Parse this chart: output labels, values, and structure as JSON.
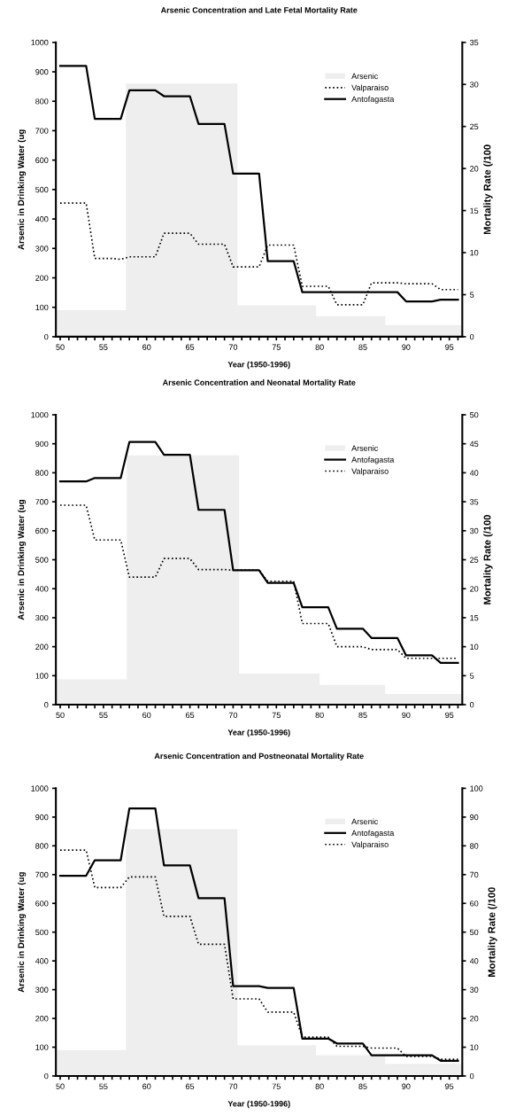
{
  "chart_data": [
    {
      "type": "line",
      "title": "Arsenic Concentration and Late Fetal Mortality Rate",
      "xlabel": "Year (1950-1996)",
      "ylabel": "Arsenic in Drinking Water (ug",
      "y2label": "Mortality Rate (/100",
      "xlim": [
        49.5,
        96.5
      ],
      "xticks": [
        50,
        {
          "value": 51,
          "label": null
        },
        {
          "value": 52,
          "label": null
        },
        {
          "value": 53,
          "label": null
        },
        {
          "value": 54,
          "label": null
        },
        55,
        {
          "value": 56,
          "label": null
        },
        {
          "value": 57,
          "label": null
        },
        {
          "value": 58,
          "label": null
        },
        {
          "value": 59,
          "label": null
        },
        60,
        {
          "value": 61,
          "label": null
        },
        {
          "value": 62,
          "label": null
        },
        {
          "value": 63,
          "label": null
        },
        {
          "value": 64,
          "label": null
        },
        65,
        {
          "value": 66,
          "label": null
        },
        {
          "value": 67,
          "label": null
        },
        {
          "value": 68,
          "label": null
        },
        {
          "value": 69,
          "label": null
        },
        70,
        {
          "value": 71,
          "label": null
        },
        {
          "value": 72,
          "label": null
        },
        {
          "value": 73,
          "label": null
        },
        {
          "value": 74,
          "label": null
        },
        75,
        {
          "value": 76,
          "label": null
        },
        {
          "value": 77,
          "label": null
        },
        {
          "value": 78,
          "label": null
        },
        {
          "value": 79,
          "label": null
        },
        80,
        {
          "value": 81,
          "label": null
        },
        {
          "value": 82,
          "label": null
        },
        {
          "value": 83,
          "label": null
        },
        {
          "value": 84,
          "label": null
        },
        85,
        {
          "value": 86,
          "label": null
        },
        {
          "value": 87,
          "label": null
        },
        {
          "value": 88,
          "label": null
        },
        {
          "value": 89,
          "label": null
        },
        90,
        {
          "value": 91,
          "label": null
        },
        {
          "value": 92,
          "label": null
        },
        {
          "value": 93,
          "label": null
        },
        {
          "value": 94,
          "label": null
        },
        95,
        {
          "value": 96,
          "label": null
        }
      ],
      "ylim": [
        0,
        1000
      ],
      "yticks": [
        0,
        100,
        200,
        300,
        400,
        500,
        600,
        700,
        800,
        900,
        1000
      ],
      "y2lim": [
        0,
        35
      ],
      "y2ticks": [
        0,
        5,
        10,
        15,
        20,
        25,
        30,
        35
      ],
      "grid": false,
      "legend": "top right",
      "series": [
        {
          "name": "Arsenic",
          "type": "area",
          "color": "#eeeeee",
          "x": [
            49.5,
            57.6,
            57.6,
            70.5,
            70.5,
            79.6,
            79.6,
            87.6,
            87.6,
            96.5
          ],
          "values": [
            90,
            90,
            860,
            860,
            107,
            107,
            70,
            70,
            40,
            40
          ]
        },
        {
          "name": "Valparaiso",
          "axis": "y2",
          "color": "#000000",
          "line_style": "dotted",
          "x": [
            50,
            51,
            52,
            53,
            54,
            55,
            56,
            57,
            58,
            59,
            60,
            61,
            62,
            63,
            64,
            65,
            66,
            67,
            68,
            69,
            70,
            71,
            72,
            73,
            74,
            75,
            76,
            77,
            78,
            79,
            80,
            81,
            82,
            83,
            84,
            85,
            86,
            87,
            88,
            89,
            90,
            91,
            92,
            93,
            94,
            95,
            96
          ],
          "values": [
            15.9,
            15.9,
            15.9,
            15.9,
            9.3,
            9.3,
            9.3,
            9.2,
            9.5,
            9.5,
            9.5,
            9.5,
            12.3,
            12.3,
            12.3,
            12.3,
            11.0,
            11.0,
            11.0,
            11.0,
            8.3,
            8.3,
            8.3,
            8.3,
            10.9,
            10.9,
            10.9,
            10.9,
            6.0,
            6.0,
            6.0,
            6.0,
            3.8,
            3.8,
            3.8,
            3.8,
            6.4,
            6.4,
            6.4,
            6.4,
            6.3,
            6.3,
            6.3,
            6.3,
            5.6,
            5.6,
            5.6
          ]
        },
        {
          "name": "Antofagasta",
          "axis": "y2",
          "color": "#000000",
          "line_style": "solid",
          "x": [
            50,
            51,
            52,
            53,
            54,
            55,
            56,
            57,
            58,
            59,
            60,
            61,
            62,
            63,
            64,
            65,
            66,
            67,
            68,
            69,
            70,
            71,
            72,
            73,
            74,
            75,
            76,
            77,
            78,
            79,
            80,
            81,
            82,
            83,
            84,
            85,
            86,
            87,
            88,
            89,
            90,
            91,
            92,
            93,
            94,
            95,
            96
          ],
          "values": [
            32.2,
            32.2,
            32.2,
            32.2,
            25.9,
            25.9,
            25.9,
            25.9,
            29.3,
            29.3,
            29.3,
            29.3,
            28.6,
            28.6,
            28.6,
            28.6,
            25.3,
            25.3,
            25.3,
            25.3,
            19.4,
            19.4,
            19.4,
            19.4,
            9.0,
            9.0,
            9.0,
            9.0,
            5.3,
            5.3,
            5.3,
            5.3,
            5.3,
            5.3,
            5.3,
            5.3,
            5.3,
            5.3,
            5.3,
            5.3,
            4.2,
            4.2,
            4.2,
            4.2,
            4.4,
            4.4,
            4.4
          ]
        }
      ]
    },
    {
      "type": "line",
      "title": "Arsenic Concentration and Neonatal Mortality Rate",
      "xlabel": "Year (1950-1996)",
      "ylabel": "Arsenic in Drinking Water (ug",
      "y2label": "Mortality Rate (/100",
      "xlim": [
        49.5,
        96.5
      ],
      "xticks": [
        50,
        {
          "value": 51,
          "label": null
        },
        {
          "value": 52,
          "label": null
        },
        {
          "value": 53,
          "label": null
        },
        {
          "value": 54,
          "label": null
        },
        55,
        {
          "value": 56,
          "label": null
        },
        {
          "value": 57,
          "label": null
        },
        {
          "value": 58,
          "label": null
        },
        {
          "value": 59,
          "label": null
        },
        60,
        {
          "value": 61,
          "label": null
        },
        {
          "value": 62,
          "label": null
        },
        {
          "value": 63,
          "label": null
        },
        {
          "value": 64,
          "label": null
        },
        65,
        {
          "value": 66,
          "label": null
        },
        {
          "value": 67,
          "label": null
        },
        {
          "value": 68,
          "label": null
        },
        {
          "value": 69,
          "label": null
        },
        70,
        {
          "value": 71,
          "label": null
        },
        {
          "value": 72,
          "label": null
        },
        {
          "value": 73,
          "label": null
        },
        {
          "value": 74,
          "label": null
        },
        75,
        {
          "value": 76,
          "label": null
        },
        {
          "value": 77,
          "label": null
        },
        {
          "value": 78,
          "label": null
        },
        {
          "value": 79,
          "label": null
        },
        80,
        {
          "value": 81,
          "label": null
        },
        {
          "value": 82,
          "label": null
        },
        {
          "value": 83,
          "label": null
        },
        {
          "value": 84,
          "label": null
        },
        85,
        {
          "value": 86,
          "label": null
        },
        {
          "value": 87,
          "label": null
        },
        {
          "value": 88,
          "label": null
        },
        {
          "value": 89,
          "label": null
        },
        90,
        {
          "value": 91,
          "label": null
        },
        {
          "value": 92,
          "label": null
        },
        {
          "value": 93,
          "label": null
        },
        {
          "value": 94,
          "label": null
        },
        95,
        {
          "value": 96,
          "label": null
        }
      ],
      "ylim": [
        0,
        1000
      ],
      "yticks": [
        0,
        100,
        200,
        300,
        400,
        500,
        600,
        700,
        800,
        900,
        1000
      ],
      "y2lim": [
        0,
        50
      ],
      "y2ticks": [
        0,
        5,
        10,
        15,
        20,
        25,
        30,
        35,
        40,
        45,
        50
      ],
      "grid": false,
      "legend": "top right",
      "series": [
        {
          "name": "Arsenic",
          "type": "area",
          "color": "#eeeeee",
          "x": [
            49.5,
            57.7,
            57.7,
            70.7,
            70.7,
            80.0,
            80.0,
            87.6,
            87.6,
            96.5
          ],
          "values": [
            87,
            87,
            860,
            860,
            107,
            107,
            68,
            68,
            37,
            37
          ]
        },
        {
          "name": "Antofagasta",
          "axis": "y2",
          "color": "#000000",
          "line_style": "solid",
          "x": [
            50,
            51,
            52,
            53,
            54,
            55,
            56,
            57,
            58,
            59,
            60,
            61,
            62,
            63,
            64,
            65,
            66,
            67,
            68,
            69,
            70,
            71,
            72,
            73,
            74,
            75,
            76,
            77,
            78,
            79,
            80,
            81,
            82,
            83,
            84,
            85,
            86,
            87,
            88,
            89,
            90,
            91,
            92,
            93,
            94,
            95,
            96
          ],
          "values": [
            38.5,
            38.5,
            38.5,
            38.5,
            39.1,
            39.1,
            39.1,
            39.1,
            45.3,
            45.3,
            45.3,
            45.3,
            43.1,
            43.1,
            43.1,
            43.1,
            33.6,
            33.6,
            33.6,
            33.6,
            23.2,
            23.2,
            23.2,
            23.2,
            21.0,
            21.0,
            21.0,
            21.0,
            16.8,
            16.8,
            16.8,
            16.8,
            13.1,
            13.1,
            13.1,
            13.1,
            11.5,
            11.5,
            11.5,
            11.5,
            8.5,
            8.5,
            8.5,
            8.5,
            7.2,
            7.2,
            7.2
          ]
        },
        {
          "name": "Valparaiso",
          "axis": "y2",
          "color": "#000000",
          "line_style": "dotted",
          "x": [
            50,
            51,
            52,
            53,
            54,
            55,
            56,
            57,
            58,
            59,
            60,
            61,
            62,
            63,
            64,
            65,
            66,
            67,
            68,
            69,
            70,
            71,
            72,
            73,
            74,
            75,
            76,
            77,
            78,
            79,
            80,
            81,
            82,
            83,
            84,
            85,
            86,
            87,
            88,
            89,
            90,
            91,
            92,
            93,
            94,
            95,
            96
          ],
          "values": [
            34.4,
            34.4,
            34.4,
            34.4,
            28.4,
            28.4,
            28.4,
            28.4,
            22.0,
            22.0,
            22.0,
            22.0,
            25.2,
            25.2,
            25.2,
            25.2,
            23.3,
            23.3,
            23.3,
            23.3,
            23.2,
            23.2,
            23.2,
            23.2,
            21.3,
            21.3,
            21.3,
            21.3,
            14.0,
            14.0,
            14.0,
            14.0,
            10.0,
            10.0,
            10.0,
            10.0,
            9.5,
            9.5,
            9.5,
            9.5,
            8.0,
            8.0,
            8.0,
            8.0,
            8.0,
            8.0,
            8.0
          ]
        }
      ]
    },
    {
      "type": "line",
      "title": "Arsenic Concentration and Postneonatal Mortality Rate",
      "xlabel": "Year (1950-1996)",
      "ylabel": "Arsenic in Drinking Water (ug",
      "y2label": "Mortality Rate (/100",
      "xlim": [
        49.5,
        96.5
      ],
      "xticks": [
        50,
        {
          "value": 51,
          "label": null
        },
        {
          "value": 52,
          "label": null
        },
        {
          "value": 53,
          "label": null
        },
        {
          "value": 54,
          "label": null
        },
        55,
        {
          "value": 56,
          "label": null
        },
        {
          "value": 57,
          "label": null
        },
        {
          "value": 58,
          "label": null
        },
        {
          "value": 59,
          "label": null
        },
        60,
        {
          "value": 61,
          "label": null
        },
        {
          "value": 62,
          "label": null
        },
        {
          "value": 63,
          "label": null
        },
        {
          "value": 64,
          "label": null
        },
        65,
        {
          "value": 66,
          "label": null
        },
        {
          "value": 67,
          "label": null
        },
        {
          "value": 68,
          "label": null
        },
        {
          "value": 69,
          "label": null
        },
        70,
        {
          "value": 71,
          "label": null
        },
        {
          "value": 72,
          "label": null
        },
        {
          "value": 73,
          "label": null
        },
        {
          "value": 74,
          "label": null
        },
        75,
        {
          "value": 76,
          "label": null
        },
        {
          "value": 77,
          "label": null
        },
        {
          "value": 78,
          "label": null
        },
        {
          "value": 79,
          "label": null
        },
        80,
        {
          "value": 81,
          "label": null
        },
        {
          "value": 82,
          "label": null
        },
        {
          "value": 83,
          "label": null
        },
        {
          "value": 84,
          "label": null
        },
        85,
        {
          "value": 86,
          "label": null
        },
        {
          "value": 87,
          "label": null
        },
        {
          "value": 88,
          "label": null
        },
        {
          "value": 89,
          "label": null
        },
        90,
        {
          "value": 91,
          "label": null
        },
        {
          "value": 92,
          "label": null
        },
        {
          "value": 93,
          "label": null
        },
        {
          "value": 94,
          "label": null
        },
        95,
        {
          "value": 96,
          "label": null
        }
      ],
      "ylim": [
        0,
        1000
      ],
      "yticks": [
        0,
        100,
        200,
        300,
        400,
        500,
        600,
        700,
        800,
        900,
        1000
      ],
      "y2lim": [
        0,
        100
      ],
      "y2ticks": [
        0,
        10,
        20,
        30,
        40,
        50,
        60,
        70,
        80,
        90,
        100
      ],
      "grid": false,
      "legend": "top right",
      "series": [
        {
          "name": "Arsenic",
          "type": "area",
          "color": "#eeeeee",
          "x": [
            49.5,
            57.6,
            57.6,
            70.5,
            70.5,
            79.6,
            79.6,
            87.6,
            87.6,
            96.5
          ],
          "values": [
            90,
            90,
            858,
            858,
            107,
            107,
            72,
            72,
            42,
            42
          ]
        },
        {
          "name": "Antofagasta",
          "axis": "y2",
          "color": "#000000",
          "line_style": "solid",
          "x": [
            50,
            51,
            52,
            53,
            54,
            55,
            56,
            57,
            58,
            59,
            60,
            61,
            62,
            63,
            64,
            65,
            66,
            67,
            68,
            69,
            70,
            71,
            72,
            73,
            74,
            75,
            76,
            77,
            78,
            79,
            80,
            81,
            82,
            83,
            84,
            85,
            86,
            87,
            88,
            89,
            90,
            91,
            92,
            93,
            94,
            95,
            96
          ],
          "values": [
            69.6,
            69.6,
            69.6,
            69.6,
            75.0,
            75.0,
            75.0,
            75.0,
            93.0,
            93.0,
            93.0,
            93.0,
            73.2,
            73.2,
            73.2,
            73.2,
            61.8,
            61.8,
            61.8,
            61.8,
            31.2,
            31.2,
            31.2,
            31.2,
            30.6,
            30.6,
            30.6,
            30.6,
            13.0,
            13.0,
            13.0,
            13.0,
            11.3,
            11.3,
            11.3,
            11.3,
            7.2,
            7.2,
            7.2,
            7.2,
            7.2,
            7.2,
            7.2,
            7.2,
            5.3,
            5.3,
            5.3
          ]
        },
        {
          "name": "Valparaiso",
          "axis": "y2",
          "color": "#000000",
          "line_style": "dotted",
          "x": [
            50,
            51,
            52,
            53,
            54,
            55,
            56,
            57,
            58,
            59,
            60,
            61,
            62,
            63,
            64,
            65,
            66,
            67,
            68,
            69,
            70,
            71,
            72,
            73,
            74,
            75,
            76,
            77,
            78,
            79,
            80,
            81,
            82,
            83,
            84,
            85,
            86,
            87,
            88,
            89,
            90,
            91,
            92,
            93,
            94,
            95,
            96
          ],
          "values": [
            78.5,
            78.5,
            78.5,
            78.5,
            65.5,
            65.5,
            65.5,
            65.5,
            69.2,
            69.2,
            69.2,
            69.2,
            55.5,
            55.5,
            55.5,
            55.5,
            45.8,
            45.8,
            45.8,
            45.8,
            26.8,
            26.8,
            26.8,
            26.8,
            22.2,
            22.2,
            22.2,
            22.2,
            13.5,
            13.5,
            13.5,
            13.5,
            10.3,
            10.3,
            10.3,
            10.3,
            9.7,
            9.7,
            9.7,
            9.7,
            6.8,
            6.8,
            6.8,
            6.8,
            5.8,
            5.8,
            5.8
          ]
        }
      ]
    }
  ]
}
